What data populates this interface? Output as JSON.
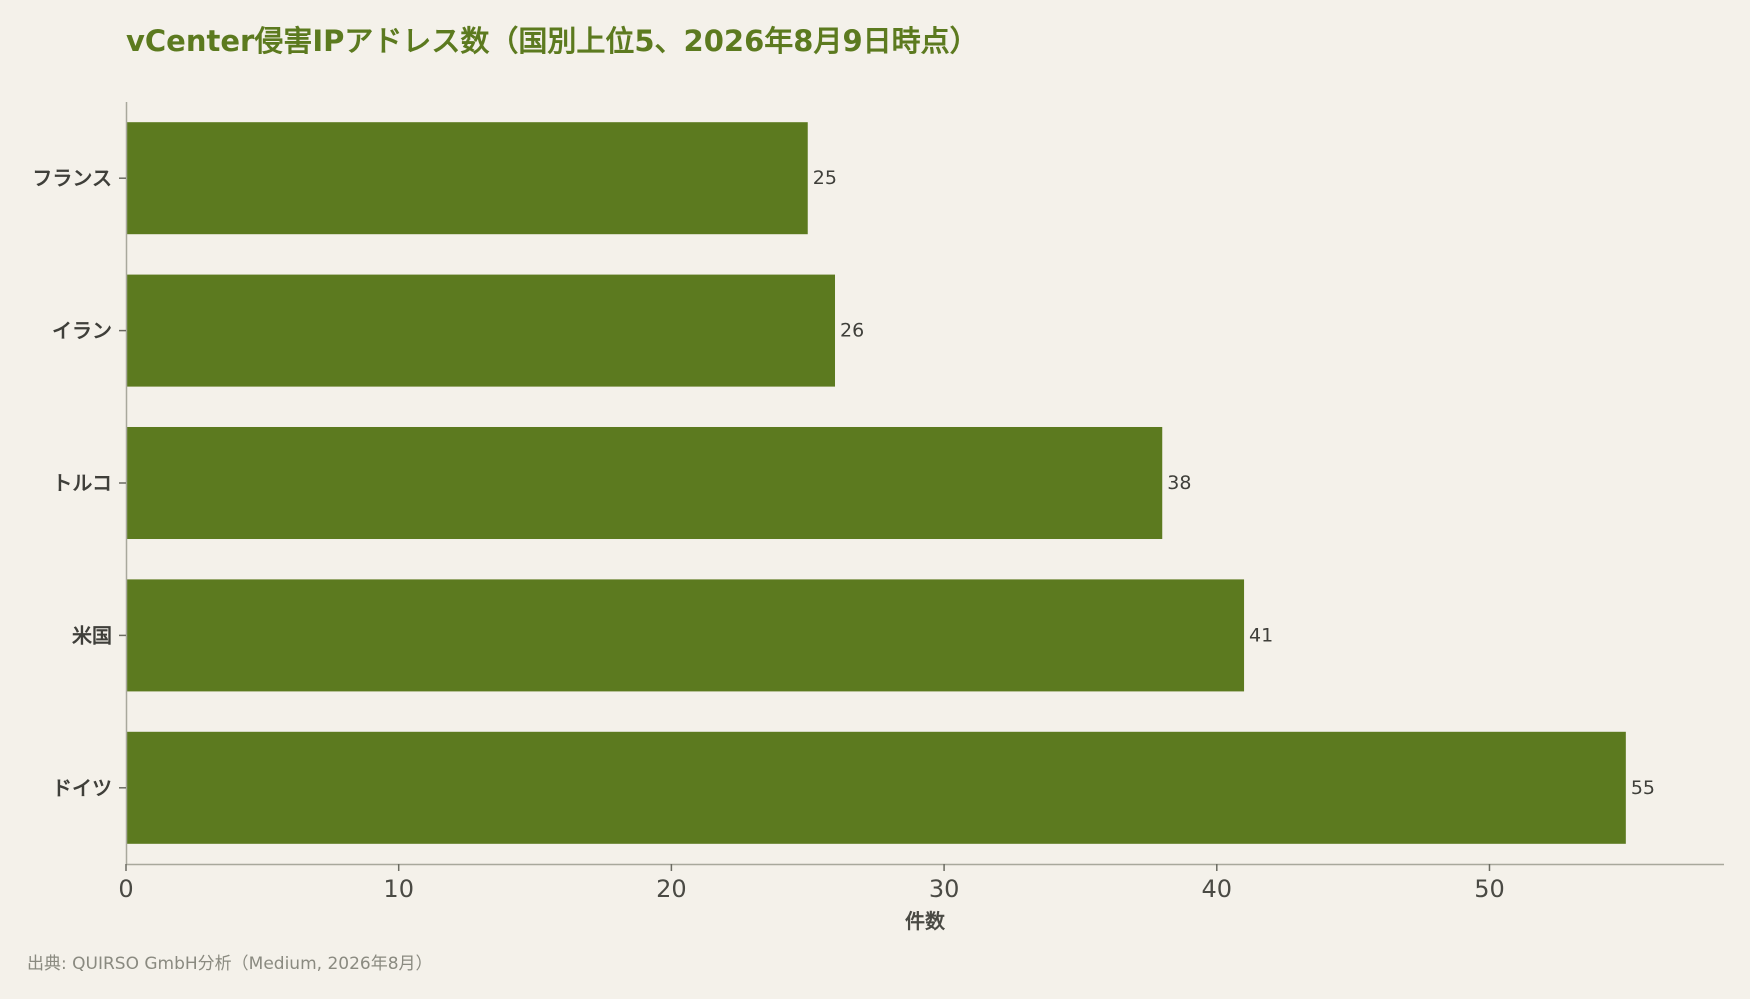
{
  "chart_data": {
    "type": "bar",
    "orientation": "horizontal",
    "title": "vCenter侵害IPアドレス数（国別上位5、2026年8月9日時点）",
    "categories": [
      "フランス",
      "イラン",
      "トルコ",
      "米国",
      "ドイツ"
    ],
    "values": [
      25,
      26,
      38,
      41,
      55
    ],
    "xlabel": "件数",
    "ylabel": "",
    "xlim": [
      0,
      58.6
    ],
    "xticks": [
      0,
      10,
      20,
      30,
      40,
      50
    ],
    "grid": false,
    "legend": "none",
    "data_labels": true,
    "bar_color": "#5c7a1f"
  },
  "source": "出典: QUIRSO GmbH分析（Medium, 2026年8月）"
}
